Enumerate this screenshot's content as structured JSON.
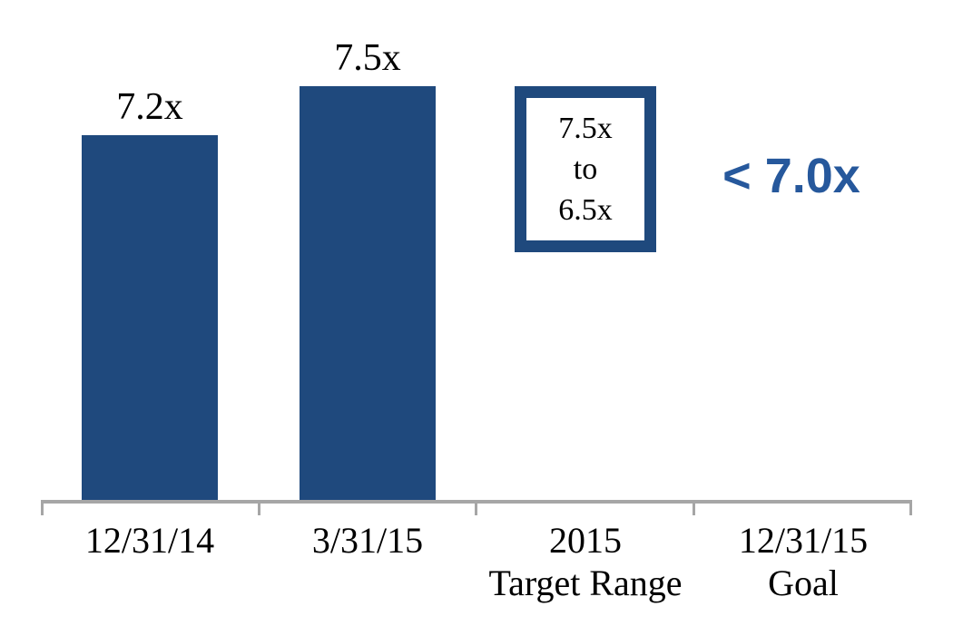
{
  "chart_data": {
    "type": "bar",
    "title": "",
    "xlabel": "",
    "ylabel": "",
    "categories": [
      "12/31/14",
      "3/31/15",
      "2015\nTarget Range",
      "12/31/15\nGoal"
    ],
    "values": [
      7.2,
      7.5,
      null,
      null
    ],
    "bar_labels": [
      "7.2x",
      "7.5x"
    ],
    "annotations": {
      "target_range": {
        "category": "2015 Target Range",
        "high": 7.5,
        "low": 6.5,
        "label": "7.5x\nto\n6.5x"
      },
      "goal": {
        "category": "12/31/15 Goal",
        "threshold": 7.0,
        "label": "< 7.0x"
      }
    },
    "ylim": [
      5.0,
      7.8
    ],
    "grid": false,
    "legend": false,
    "colors": {
      "bar": "#1F497D",
      "range_box_border": "#1F497D",
      "goal_text": "#26589C",
      "axis": "#A6A6A6",
      "text": "#000000"
    }
  }
}
